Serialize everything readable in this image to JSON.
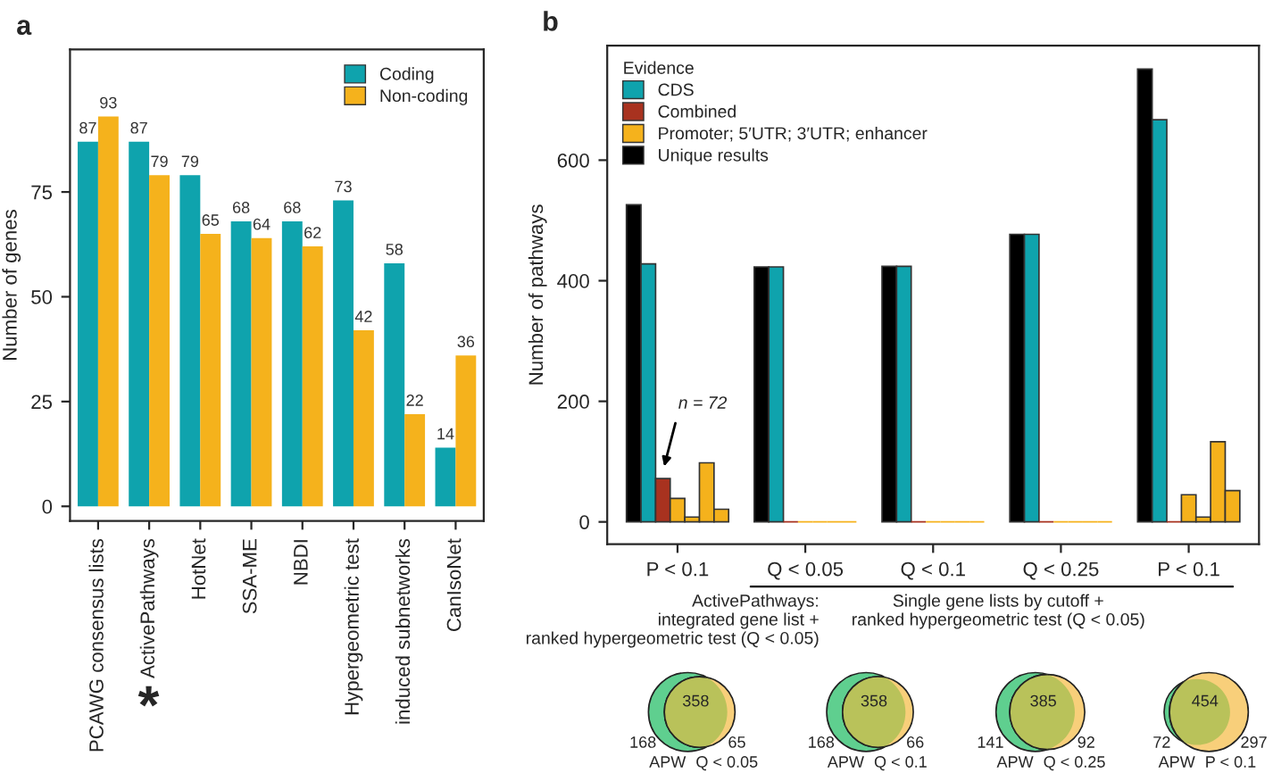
{
  "chart_data": [
    {
      "type": "bar",
      "title": "a",
      "ylabel": "Number of genes",
      "categories": [
        "PCAWG consensus lists",
        "ActivePathways",
        "HotNet",
        "SSA-ME",
        "NBDI",
        "Hypergeometric test",
        "induced subnetworks",
        "CanIsoNet"
      ],
      "series": [
        {
          "name": "Coding",
          "color": "#0fa3ad",
          "values": [
            87,
            87,
            79,
            68,
            68,
            73,
            58,
            14
          ]
        },
        {
          "name": "Non-coding",
          "color": "#f5b21c",
          "values": [
            93,
            79,
            65,
            64,
            62,
            42,
            22,
            36
          ]
        }
      ],
      "ylim": [
        -3.5,
        109
      ],
      "yticks": [
        0,
        25,
        50,
        75
      ],
      "data_labels": true,
      "legend": "top right",
      "grid": false,
      "annotations": [
        "*"
      ]
    },
    {
      "type": "bar",
      "title": "b",
      "ylabel": "Number of pathways",
      "legend_title": "Evidence",
      "categories": [
        "P < 0.1",
        "Q < 0.05",
        "Q < 0.1",
        "Q < 0.25",
        "P < 0.1"
      ],
      "series": [
        {
          "name": "Unique results",
          "color": "#000000",
          "values": [
            526,
            423,
            424,
            477,
            751
          ]
        },
        {
          "name": "CDS",
          "color": "#0fa3ad",
          "values": [
            428,
            423,
            424,
            477,
            667
          ]
        },
        {
          "name": "Combined",
          "color": "#a8321f",
          "values": [
            72,
            0,
            0,
            0,
            0
          ]
        },
        {
          "name": "Promoter; 5′UTR; 3′UTR; enhancer",
          "color": "#f5b21c",
          "values": [
            39,
            0,
            0,
            0,
            45
          ]
        },
        {
          "color": "#f5b21c",
          "values": [
            8,
            0,
            0,
            0,
            8
          ]
        },
        {
          "color": "#f5b21c",
          "values": [
            98,
            0,
            0,
            0,
            133
          ]
        },
        {
          "color": "#f5b21c",
          "values": [
            21,
            0,
            0,
            0,
            52
          ]
        }
      ],
      "ylim": [
        -37,
        790
      ],
      "yticks": [
        0,
        200,
        400,
        600
      ],
      "legend": "top left",
      "grid": false,
      "annotations": [
        "n = 72",
        "ActivePathways:\nintegrated gene list +\nranked hypergeometric test (Q < 0.05)",
        "Single gene lists by cutoff +\nranked hypergeometric test (Q < 0.05)"
      ]
    },
    {
      "type": "other",
      "annotations": [
        "168",
        "358",
        "65",
        "APW",
        "Q < 0.05"
      ]
    },
    {
      "type": "other",
      "annotations": [
        "168",
        "358",
        "66",
        "APW",
        "Q < 0.1"
      ]
    },
    {
      "type": "other",
      "annotations": [
        "141",
        "385",
        "92",
        "APW",
        "Q < 0.25"
      ]
    },
    {
      "type": "other",
      "annotations": [
        "72",
        "454",
        "297",
        "APW",
        "P < 0.1"
      ]
    }
  ]
}
